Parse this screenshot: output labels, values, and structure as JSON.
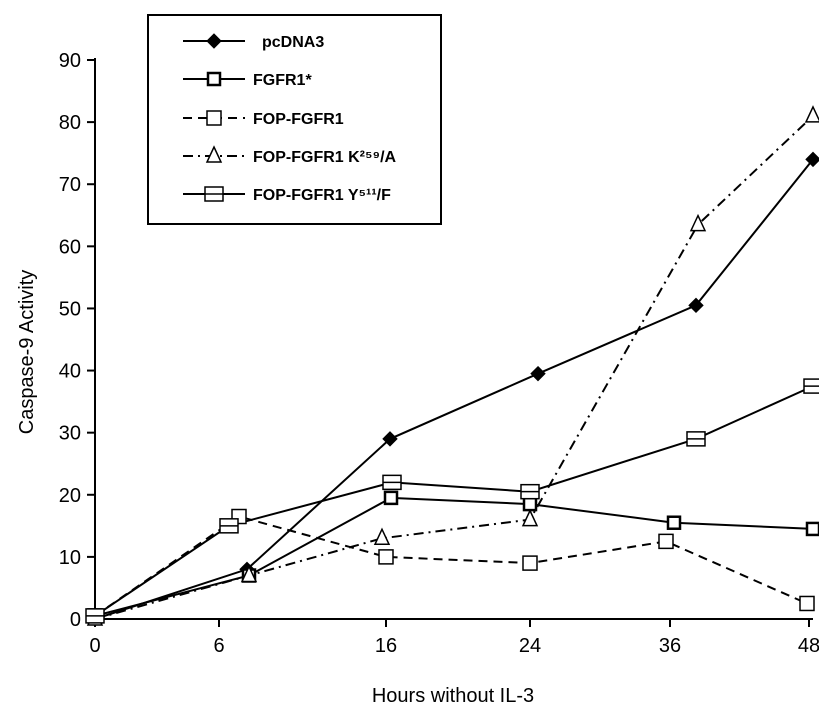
{
  "chart_data": {
    "type": "line",
    "title": "",
    "xlabel": "Hours without IL-3",
    "ylabel": "Caspase-9 Activity",
    "categories": [
      "0",
      "6",
      "16",
      "24",
      "36",
      "48"
    ],
    "yticks": [
      "0",
      "10",
      "20",
      "30",
      "40",
      "50",
      "60",
      "70",
      "80",
      "90"
    ],
    "ylim": [
      0,
      90
    ],
    "grid": false,
    "legend_position": "top-left",
    "series": [
      {
        "name": "pcDNA3",
        "line": "solid",
        "marker": "filled-diamond",
        "x": [
          0,
          6,
          16,
          24,
          36,
          48
        ],
        "values": [
          0,
          8,
          29,
          39.5,
          50.5,
          74
        ]
      },
      {
        "name": "FGFR1*",
        "line": "solid",
        "marker": "small-open-square",
        "x": [
          0,
          6,
          16,
          24,
          36,
          48
        ],
        "values": [
          0.5,
          7,
          19.5,
          18.5,
          15.5,
          14.5
        ]
      },
      {
        "name": "FOP-FGFR1",
        "line": "dashed",
        "marker": "open-square",
        "x": [
          0,
          6,
          16,
          24,
          36,
          48
        ],
        "values": [
          0.5,
          16.5,
          10,
          9,
          12.5,
          2.5
        ]
      },
      {
        "name": "FOP-FGFR1 K²⁵⁹/A",
        "line": "dash-dot",
        "marker": "open-triangle",
        "x": [
          0,
          6,
          16,
          24,
          36,
          48
        ],
        "values": [
          0,
          7,
          13,
          16,
          63.5,
          81
        ]
      },
      {
        "name": "FOP-FGFR1 Y⁵¹¹/F",
        "line": "solid",
        "marker": "open-rectangle",
        "x": [
          0,
          6,
          16,
          24,
          36,
          48
        ],
        "values": [
          0.5,
          15,
          22,
          20.5,
          29,
          37.5
        ]
      }
    ]
  }
}
